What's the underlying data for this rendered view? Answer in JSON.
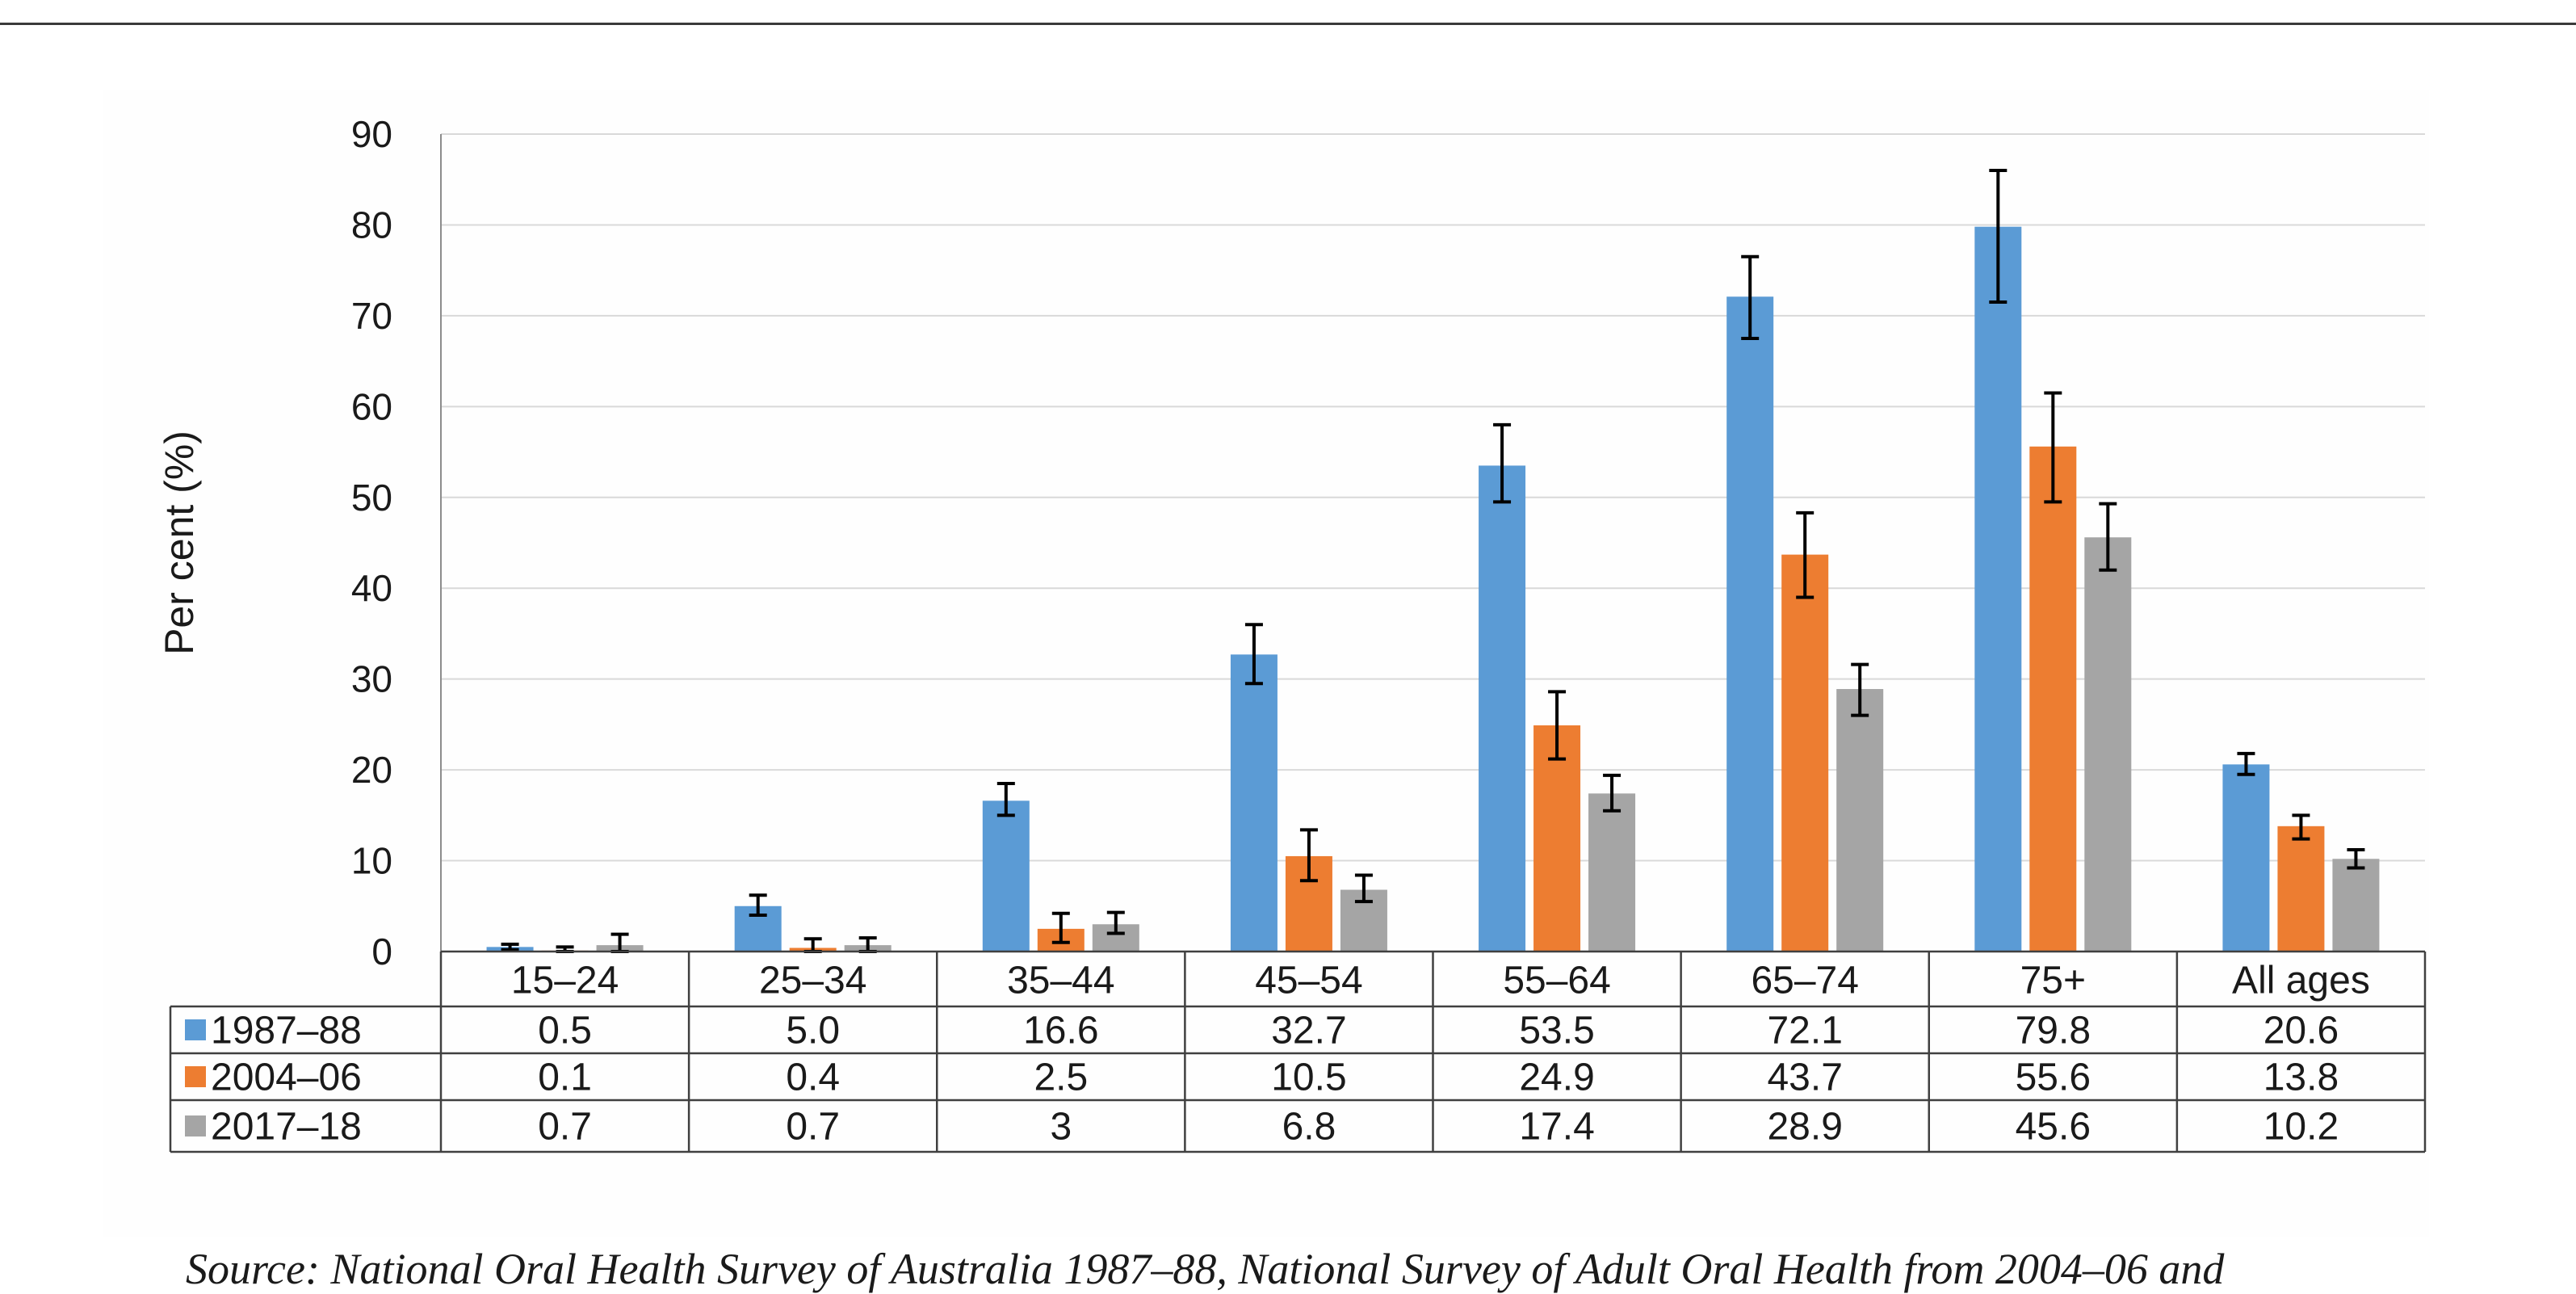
{
  "chart_data": {
    "type": "bar",
    "title": "",
    "xlabel": "",
    "ylabel": "Per cent (%)",
    "ylim": [
      0,
      90
    ],
    "yticks": [
      0,
      10,
      20,
      30,
      40,
      50,
      60,
      70,
      80,
      90
    ],
    "grid": true,
    "legend_placement": "left of data table",
    "categories": [
      "15–24",
      "25–34",
      "35–44",
      "45–54",
      "55–64",
      "65–74",
      "75+",
      "All ages"
    ],
    "series": [
      {
        "name": "1987–88",
        "color": "#5b9bd5",
        "values": [
          0.5,
          5.0,
          16.6,
          32.7,
          53.5,
          72.1,
          79.8,
          20.6
        ],
        "labels": [
          "0.5",
          "5.0",
          "16.6",
          "32.7",
          "53.5",
          "72.1",
          "79.8",
          "20.6"
        ],
        "error_low": [
          0.2,
          4.0,
          15.0,
          29.5,
          49.5,
          67.5,
          71.5,
          19.5
        ],
        "error_high": [
          0.8,
          6.2,
          18.5,
          36.0,
          58.0,
          76.5,
          86.0,
          21.8
        ]
      },
      {
        "name": "2004–06",
        "color": "#ed7d31",
        "values": [
          0.1,
          0.4,
          2.5,
          10.5,
          24.9,
          43.7,
          55.6,
          13.8
        ],
        "labels": [
          "0.1",
          "0.4",
          "2.5",
          "10.5",
          "24.9",
          "43.7",
          "55.6",
          "13.8"
        ],
        "error_low": [
          0.0,
          0.0,
          1.0,
          7.8,
          21.2,
          39.0,
          49.5,
          12.4
        ],
        "error_high": [
          0.5,
          1.4,
          4.2,
          13.4,
          28.6,
          48.3,
          61.5,
          15.0
        ]
      },
      {
        "name": "2017–18",
        "color": "#a5a5a5",
        "values": [
          0.7,
          0.7,
          3,
          6.8,
          17.4,
          28.9,
          45.6,
          10.2
        ],
        "labels": [
          "0.7",
          "0.7",
          "3",
          "6.8",
          "17.4",
          "28.9",
          "45.6",
          "10.2"
        ],
        "error_low": [
          0.0,
          0.0,
          2.0,
          5.5,
          15.5,
          26.0,
          42.0,
          9.2
        ],
        "error_high": [
          1.9,
          1.5,
          4.3,
          8.4,
          19.4,
          31.6,
          49.3,
          11.2
        ]
      }
    ]
  },
  "caption": "Source: National Oral Health Survey of Australia 1987–88, National Survey of Adult Oral Health from 2004–06 and"
}
